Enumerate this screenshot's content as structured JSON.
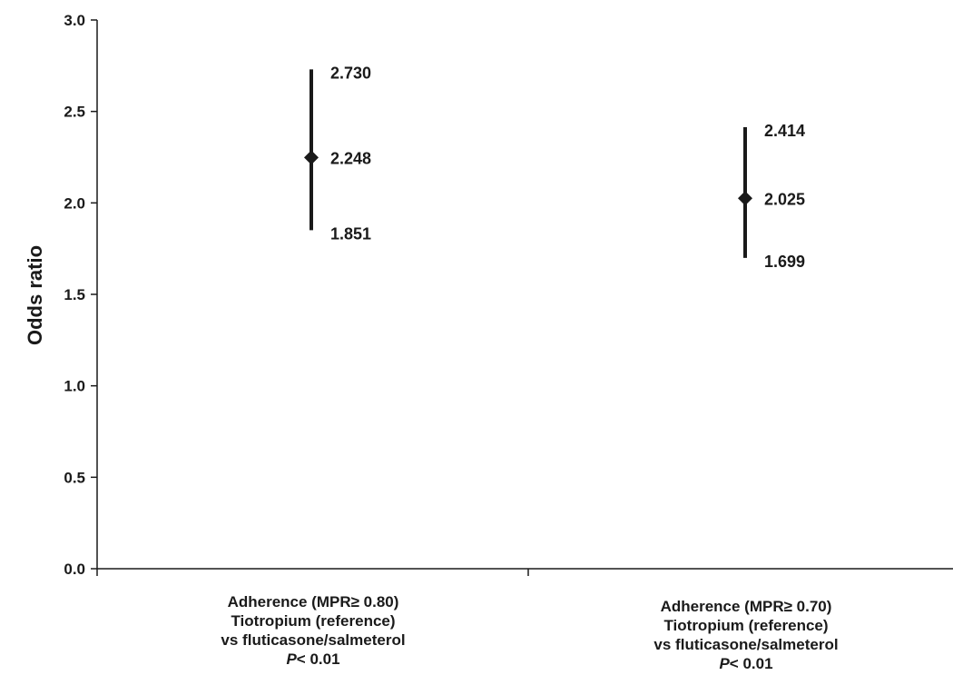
{
  "chart_data": {
    "type": "scatter",
    "ylabel": "Odds ratio",
    "ylim": [
      0.0,
      3.0
    ],
    "yticks": [
      "0.0",
      "0.5",
      "1.0",
      "1.5",
      "2.0",
      "2.5",
      "3.0"
    ],
    "grid": false,
    "colors": {
      "axis": "#1a1a1a",
      "marker": "#1a1a1a"
    },
    "categories": [
      {
        "lines": [
          "Adherence (MPR≥ 0.80)",
          "Tiotropium (reference)",
          "vs fluticasone/salmeterol"
        ],
        "p_symbol": "P",
        "p_rest": "< 0.01"
      },
      {
        "lines": [
          "Adherence (MPR≥ 0.70)",
          "Tiotropium (reference)",
          "vs fluticasone/salmeterol"
        ],
        "p_symbol": "P",
        "p_rest": "< 0.01"
      }
    ],
    "points": [
      {
        "estimate": 2.248,
        "lower": 1.851,
        "upper": 2.73,
        "estimate_label": "2.248",
        "lower_label": "1.851",
        "upper_label": "2.730"
      },
      {
        "estimate": 2.025,
        "lower": 1.699,
        "upper": 2.414,
        "estimate_label": "2.025",
        "lower_label": "1.699",
        "upper_label": "2.414"
      }
    ]
  }
}
